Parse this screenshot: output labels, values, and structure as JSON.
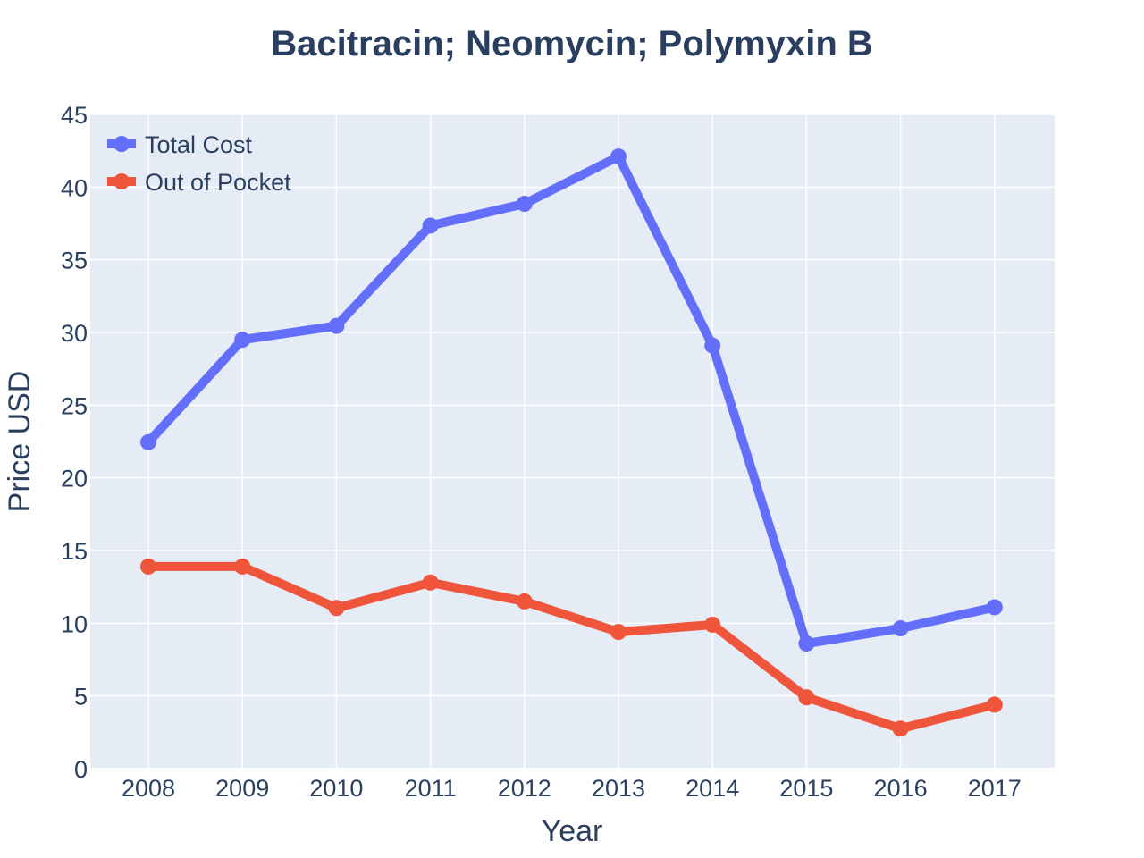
{
  "colors": {
    "plot_bg": "#e5ecf6",
    "grid": "#ffffff",
    "text": "#2a3f5f",
    "total_cost": "#636efa",
    "out_of_pocket": "#ef553b"
  },
  "chart_data": {
    "type": "line",
    "title": "Bacitracin; Neomycin; Polymyxin B",
    "xlabel": "Year",
    "ylabel": "Price USD",
    "x": [
      "2008",
      "2009",
      "2010",
      "2011",
      "2012",
      "2013",
      "2014",
      "2015",
      "2016",
      "2017"
    ],
    "ylim": [
      0,
      45
    ],
    "yticks": [
      "0",
      "5",
      "10",
      "15",
      "20",
      "25",
      "30",
      "35",
      "40",
      "45"
    ],
    "grid": true,
    "legend_position": "top-left",
    "series": [
      {
        "name": "Total Cost",
        "color": "#636efa",
        "values": [
          22.45,
          29.5,
          30.45,
          37.35,
          38.85,
          42.1,
          29.1,
          8.6,
          9.65,
          11.1
        ]
      },
      {
        "name": "Out of Pocket",
        "color": "#ef553b",
        "values": [
          13.9,
          13.9,
          11.05,
          12.8,
          11.5,
          9.4,
          9.9,
          4.9,
          2.75,
          4.4
        ]
      }
    ]
  }
}
